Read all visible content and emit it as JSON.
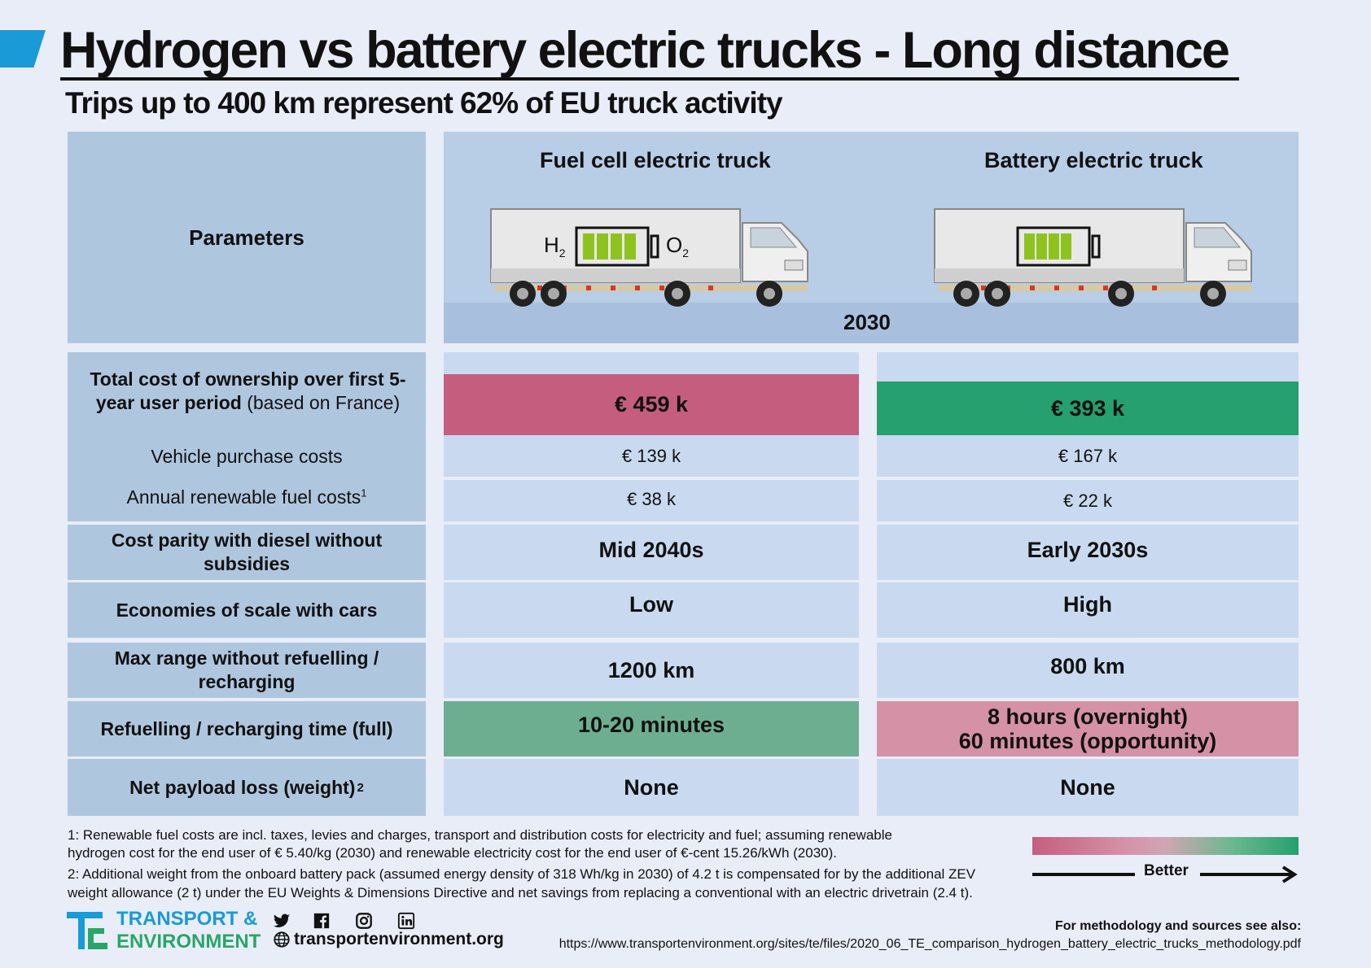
{
  "header": {
    "title": "Hydrogen vs battery electric trucks - Long distance",
    "subtitle": "Trips up to 400 km represent 62% of EU truck activity"
  },
  "table": {
    "param_header": "Parameters",
    "col_fcev": "Fuel cell electric truck",
    "col_bev": "Battery electric truck",
    "year": "2030",
    "fcev_label_h2": "H",
    "fcev_label_h2_sub": "2",
    "fcev_label_o2": "O",
    "fcev_label_o2_sub": "2",
    "tco": {
      "label_bold": "Total cost of ownership  over first 5-year user period",
      "label_rest": " (based on France)",
      "fcev": "€ 459 k",
      "bev": "€ 393 k"
    },
    "purchase": {
      "label": "Vehicle purchase costs",
      "fcev": "€ 139 k",
      "bev": "€ 167 k"
    },
    "fuel": {
      "label": "Annual renewable fuel costs",
      "sup": "1",
      "fcev": "€ 38 k",
      "bev": "€ 22 k"
    },
    "parity": {
      "label": "Cost parity with diesel without subsidies",
      "fcev": "Mid 2040s",
      "bev": "Early 2030s"
    },
    "scale": {
      "label": "Economies of scale with cars",
      "fcev": "Low",
      "bev": "High"
    },
    "range": {
      "label": "Max range without refuelling / recharging",
      "fcev": "1200 km",
      "bev": "800 km"
    },
    "refuel": {
      "label": "Refuelling / recharging time (full)",
      "fcev": "10-20  minutes",
      "bev_line1": "8 hours (overnight)",
      "bev_line2": "60 minutes (opportunity)"
    },
    "payload": {
      "label": "Net payload loss (weight)",
      "sup": "2",
      "fcev": "None",
      "bev": "None"
    }
  },
  "footnotes": {
    "note1_line1": "1: Renewable fuel costs are incl. taxes, levies and charges, transport and distribution costs for electricity and fuel; assuming renewable",
    "note1_line2": "hydrogen cost for the end user of € 5.40/kg (2030) and renewable electricity cost for the end user of €-cent 15.26/kWh (2030).",
    "note2_line1": "2: Additional weight from the onboard battery pack (assumed energy density of 318 Wh/kg in 2030) of 4.2 t is compensated for by the additional ZEV",
    "note2_line2": "weight allowance (2 t) under the EU Weights & Dimensions Directive and net savings from replacing a conventional with an electric drivetrain (2.4 t)."
  },
  "legend": {
    "better": "Better",
    "colors": {
      "worse": "#c55e7e",
      "better": "#25a06e"
    }
  },
  "footer": {
    "logo_line1": "TRANSPORT &",
    "logo_line2": "ENVIRONMENT",
    "website": "transportenvironment.org",
    "sources_label": "For methodology and sources see also:",
    "sources_url": "https://www.transportenvironment.org/sites/te/files/2020_06_TE_comparison_hydrogen_battery_electric_trucks_methodology.pdf",
    "social_icons": [
      "twitter-icon",
      "facebook-icon",
      "instagram-icon",
      "linkedin-icon",
      "globe-icon"
    ]
  }
}
